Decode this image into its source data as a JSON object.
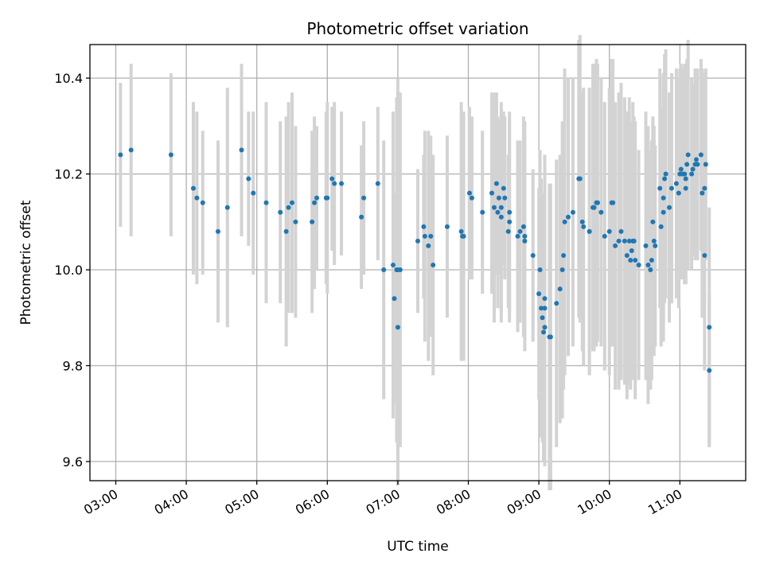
{
  "chart_data": {
    "type": "scatter",
    "title": "Photometric offset variation",
    "xlabel": "UTC time",
    "ylabel": "Photometric offset",
    "x_unit": "time of day (hours, UTC)",
    "xlim": [
      "02:38",
      "11:56"
    ],
    "ylim": [
      9.56,
      10.47
    ],
    "grid": true,
    "x_ticks": [
      "03:00",
      "04:00",
      "05:00",
      "06:00",
      "07:00",
      "08:00",
      "09:00",
      "10:00",
      "11:00"
    ],
    "y_ticks": [
      "9.6",
      "9.8",
      "10.0",
      "10.2",
      "10.4"
    ],
    "point_color": "#1f77b4",
    "errorbar_color": "#d3d3d3",
    "series": [
      {
        "x": [
          "03:04",
          "03:13",
          "03:47",
          "04:06",
          "04:09",
          "04:14",
          "04:27",
          "04:35",
          "04:47",
          "04:53",
          "04:57",
          "05:08",
          "05:20",
          "05:25",
          "05:27",
          "05:30",
          "05:33",
          "05:47",
          "05:49",
          "05:51",
          "05:59",
          "06:00",
          "06:04",
          "06:06",
          "06:12",
          "06:29",
          "06:31",
          "06:43",
          "06:48",
          "06:56",
          "06:57",
          "06:59",
          "07:00",
          "07:00",
          "07:02",
          "07:17",
          "07:22",
          "07:23",
          "07:26",
          "07:28",
          "07:30",
          "07:42",
          "07:54",
          "07:55",
          "07:56",
          "08:01",
          "08:03",
          "08:12",
          "08:20",
          "08:22",
          "08:24",
          "08:25",
          "08:26",
          "08:28",
          "08:28",
          "08:30",
          "08:31",
          "08:34",
          "08:35",
          "08:35",
          "08:42",
          "08:44",
          "08:47",
          "08:48",
          "08:48",
          "08:55",
          "09:00",
          "09:01",
          "09:02",
          "09:03",
          "09:04",
          "09:05",
          "09:05",
          "09:05",
          "09:09",
          "09:10",
          "09:15",
          "09:18",
          "09:20",
          "09:21",
          "09:22",
          "09:25",
          "09:29",
          "09:34",
          "09:35",
          "09:37",
          "09:38",
          "09:43",
          "09:43",
          "09:46",
          "09:47",
          "09:49",
          "09:50",
          "09:53",
          "09:56",
          "10:00",
          "10:02",
          "10:03",
          "10:05",
          "10:08",
          "10:10",
          "10:13",
          "10:15",
          "10:17",
          "10:18",
          "10:19",
          "10:20",
          "10:21",
          "10:22",
          "10:25",
          "10:31",
          "10:33",
          "10:35",
          "10:36",
          "10:37",
          "10:38",
          "10:39",
          "10:43",
          "10:44",
          "10:46",
          "10:46",
          "10:47",
          "10:48",
          "10:51",
          "10:53",
          "10:57",
          "10:59",
          "11:00",
          "11:01",
          "11:02",
          "11:04",
          "11:05",
          "11:05",
          "11:06",
          "11:07",
          "11:10",
          "11:11",
          "11:13",
          "11:14",
          "11:15",
          "11:18",
          "11:19",
          "11:21",
          "11:21",
          "11:22",
          "11:25",
          "11:25"
        ],
        "y": [
          10.24,
          10.25,
          10.24,
          10.17,
          10.15,
          10.14,
          10.08,
          10.13,
          10.25,
          10.19,
          10.16,
          10.14,
          10.12,
          10.08,
          10.13,
          10.14,
          10.1,
          10.1,
          10.14,
          10.15,
          10.15,
          10.15,
          10.19,
          10.18,
          10.18,
          10.11,
          10.15,
          10.18,
          10.0,
          10.01,
          9.94,
          10.0,
          10.0,
          9.88,
          10.0,
          10.06,
          10.09,
          10.07,
          10.05,
          10.07,
          10.01,
          10.09,
          10.08,
          10.07,
          10.07,
          10.16,
          10.15,
          10.12,
          10.16,
          10.13,
          10.18,
          10.12,
          10.15,
          10.11,
          10.13,
          10.17,
          10.15,
          10.08,
          10.12,
          10.1,
          10.07,
          10.08,
          10.09,
          10.07,
          10.06,
          10.03,
          9.95,
          10.0,
          9.92,
          9.9,
          9.87,
          9.88,
          9.94,
          9.92,
          9.86,
          9.86,
          9.93,
          9.96,
          10.0,
          10.03,
          10.1,
          10.11,
          10.12,
          10.19,
          10.19,
          10.1,
          10.09,
          10.08,
          10.08,
          10.13,
          10.13,
          10.14,
          10.14,
          10.12,
          10.07,
          10.08,
          10.14,
          10.14,
          10.05,
          10.06,
          10.08,
          10.06,
          10.03,
          10.06,
          10.02,
          10.04,
          10.06,
          10.06,
          10.02,
          10.01,
          10.05,
          10.01,
          10.0,
          10.02,
          10.1,
          10.06,
          10.05,
          10.17,
          10.09,
          10.12,
          10.15,
          10.19,
          10.2,
          10.13,
          10.17,
          10.18,
          10.16,
          10.2,
          10.21,
          10.2,
          10.2,
          10.19,
          10.17,
          10.22,
          10.24,
          10.2,
          10.21,
          10.22,
          10.23,
          10.22,
          10.24,
          10.16,
          10.17,
          10.03,
          10.22,
          9.88,
          9.79
        ],
        "err": [
          0.15,
          0.18,
          0.17,
          0.18,
          0.18,
          0.15,
          0.19,
          0.25,
          0.18,
          0.14,
          0.17,
          0.21,
          0.19,
          0.24,
          0.22,
          0.23,
          0.2,
          0.19,
          0.18,
          0.15,
          0.18,
          0.2,
          0.15,
          0.17,
          0.15,
          0.15,
          0.16,
          0.16,
          0.27,
          0.32,
          0.22,
          0.36,
          0.4,
          0.33,
          0.37,
          0.15,
          0.15,
          0.22,
          0.24,
          0.21,
          0.23,
          0.19,
          0.27,
          0.25,
          0.26,
          0.18,
          0.17,
          0.17,
          0.21,
          0.24,
          0.19,
          0.2,
          0.16,
          0.22,
          0.22,
          0.16,
          0.17,
          0.16,
          0.21,
          0.21,
          0.2,
          0.19,
          0.23,
          0.24,
          0.2,
          0.18,
          0.22,
          0.25,
          0.27,
          0.26,
          0.27,
          0.29,
          0.3,
          0.3,
          0.32,
          0.32,
          0.3,
          0.28,
          0.31,
          0.28,
          0.32,
          0.29,
          0.28,
          0.29,
          0.3,
          0.27,
          0.29,
          0.3,
          0.3,
          0.3,
          0.3,
          0.3,
          0.29,
          0.28,
          0.28,
          0.3,
          0.3,
          0.3,
          0.3,
          0.31,
          0.31,
          0.3,
          0.3,
          0.3,
          0.27,
          0.27,
          0.29,
          0.26,
          0.29,
          0.24,
          0.28,
          0.29,
          0.25,
          0.25,
          0.22,
          0.24,
          0.21,
          0.25,
          0.25,
          0.27,
          0.26,
          0.26,
          0.26,
          0.24,
          0.24,
          0.24,
          0.24,
          0.22,
          0.22,
          0.22,
          0.23,
          0.22,
          0.2,
          0.22,
          0.24,
          0.2,
          0.18,
          0.2,
          0.19,
          0.2,
          0.2,
          0.26,
          0.24,
          0.24,
          0.2,
          0.25,
          0.16
        ]
      }
    ]
  }
}
